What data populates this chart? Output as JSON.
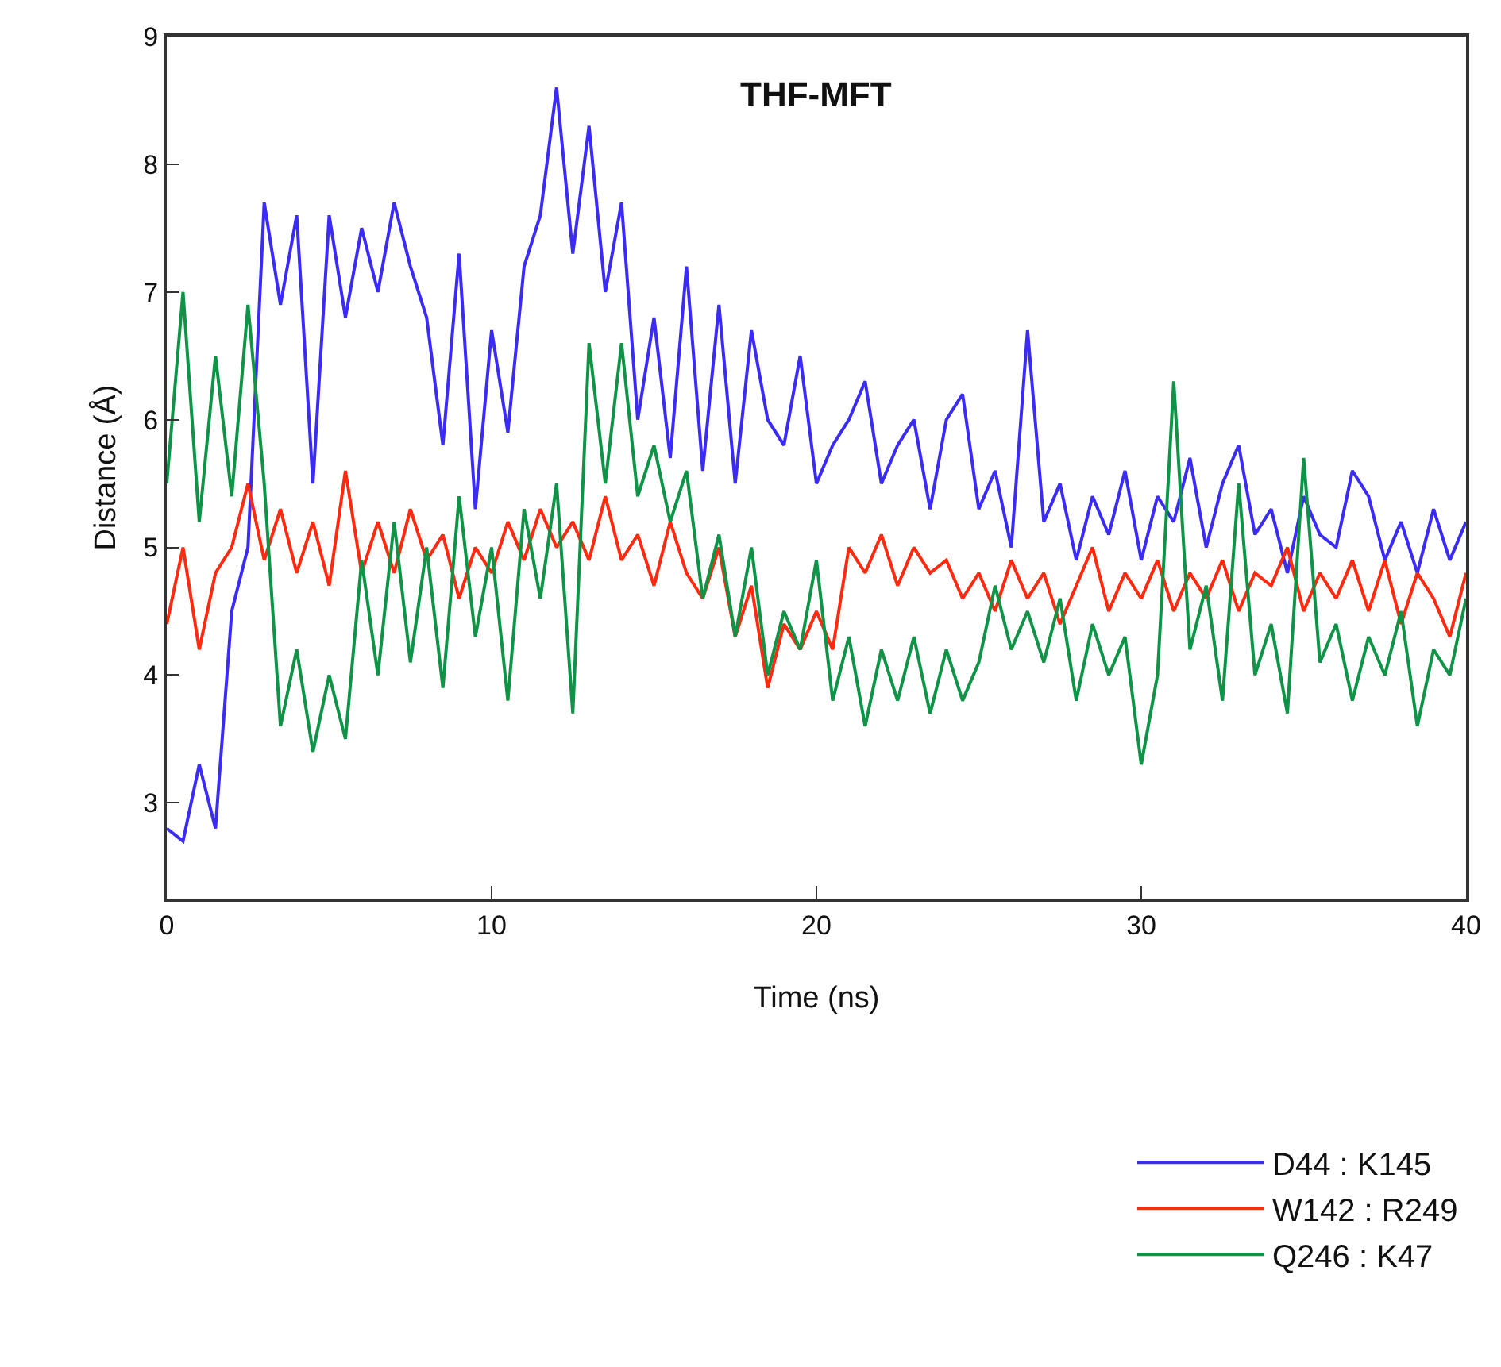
{
  "chart_data": {
    "type": "line",
    "title": "THF-MFT",
    "xlabel": "Time (ns)",
    "ylabel": "Distance (Å)",
    "x": [
      0,
      0.5,
      1,
      1.5,
      2,
      2.5,
      3,
      3.5,
      4,
      4.5,
      5,
      5.5,
      6,
      6.5,
      7,
      7.5,
      8,
      8.5,
      9,
      9.5,
      10,
      10.5,
      11,
      11.5,
      12,
      12.5,
      13,
      13.5,
      14,
      14.5,
      15,
      15.5,
      16,
      16.5,
      17,
      17.5,
      18,
      18.5,
      19,
      19.5,
      20,
      20.5,
      21,
      21.5,
      22,
      22.5,
      23,
      23.5,
      24,
      24.5,
      25,
      25.5,
      26,
      26.5,
      27,
      27.5,
      28,
      28.5,
      29,
      29.5,
      30,
      30.5,
      31,
      31.5,
      32,
      32.5,
      33,
      33.5,
      34,
      34.5,
      35,
      35.5,
      36,
      36.5,
      37,
      37.5,
      38,
      38.5,
      39,
      39.5,
      40
    ],
    "series": [
      {
        "name": "D44 : K145",
        "color": "#3a2cf5",
        "values": [
          2.8,
          2.7,
          3.3,
          2.8,
          4.5,
          5.0,
          7.7,
          6.9,
          7.6,
          5.5,
          7.6,
          6.8,
          7.5,
          7.0,
          7.7,
          7.2,
          6.8,
          5.8,
          7.3,
          5.3,
          6.7,
          5.9,
          7.2,
          7.6,
          8.6,
          7.3,
          8.3,
          7.0,
          7.7,
          6.0,
          6.8,
          5.7,
          7.2,
          5.6,
          6.9,
          5.5,
          6.7,
          6.0,
          5.8,
          6.5,
          5.5,
          5.8,
          6.0,
          6.3,
          5.5,
          5.8,
          6.0,
          5.3,
          6.0,
          6.2,
          5.3,
          5.6,
          5.0,
          6.7,
          5.2,
          5.5,
          4.9,
          5.4,
          5.1,
          5.6,
          4.9,
          5.4,
          5.2,
          5.7,
          5.0,
          5.5,
          5.8,
          5.1,
          5.3,
          4.8,
          5.4,
          5.1,
          5.0,
          5.6,
          5.4,
          4.9,
          5.2,
          4.8,
          5.3,
          4.9,
          5.2
        ]
      },
      {
        "name": "W142 : R249",
        "color": "#ff2a10",
        "values": [
          4.4,
          5.0,
          4.2,
          4.8,
          5.0,
          5.5,
          4.9,
          5.3,
          4.8,
          5.2,
          4.7,
          5.6,
          4.8,
          5.2,
          4.8,
          5.3,
          4.9,
          5.1,
          4.6,
          5.0,
          4.8,
          5.2,
          4.9,
          5.3,
          5.0,
          5.2,
          4.9,
          5.4,
          4.9,
          5.1,
          4.7,
          5.2,
          4.8,
          4.6,
          5.0,
          4.3,
          4.7,
          3.9,
          4.4,
          4.2,
          4.5,
          4.2,
          5.0,
          4.8,
          5.1,
          4.7,
          5.0,
          4.8,
          4.9,
          4.6,
          4.8,
          4.5,
          4.9,
          4.6,
          4.8,
          4.4,
          4.7,
          5.0,
          4.5,
          4.8,
          4.6,
          4.9,
          4.5,
          4.8,
          4.6,
          4.9,
          4.5,
          4.8,
          4.7,
          5.0,
          4.5,
          4.8,
          4.6,
          4.9,
          4.5,
          4.9,
          4.4,
          4.8,
          4.6,
          4.3,
          4.8
        ]
      },
      {
        "name": "Q246 : K47",
        "color": "#0f9447",
        "values": [
          5.5,
          7.0,
          5.2,
          6.5,
          5.4,
          6.9,
          5.5,
          3.6,
          4.2,
          3.4,
          4.0,
          3.5,
          4.9,
          4.0,
          5.2,
          4.1,
          5.0,
          3.9,
          5.4,
          4.3,
          5.0,
          3.8,
          5.3,
          4.6,
          5.5,
          3.7,
          6.6,
          5.5,
          6.6,
          5.4,
          5.8,
          5.2,
          5.6,
          4.6,
          5.1,
          4.3,
          5.0,
          4.0,
          4.5,
          4.2,
          4.9,
          3.8,
          4.3,
          3.6,
          4.2,
          3.8,
          4.3,
          3.7,
          4.2,
          3.8,
          4.1,
          4.7,
          4.2,
          4.5,
          4.1,
          4.6,
          3.8,
          4.4,
          4.0,
          4.3,
          3.3,
          4.0,
          6.3,
          4.2,
          4.7,
          3.8,
          5.5,
          4.0,
          4.4,
          3.7,
          5.7,
          4.1,
          4.4,
          3.8,
          4.3,
          4.0,
          4.5,
          3.6,
          4.2,
          4.0,
          4.6
        ]
      }
    ],
    "xlim": [
      0,
      40
    ],
    "xticks": [
      0,
      10,
      20,
      30,
      40
    ],
    "ylim": [
      2.25,
      9
    ],
    "yticks": [
      3,
      4,
      5,
      6,
      7,
      8,
      9
    ],
    "legend": "bottom right",
    "marker": "none",
    "line_style": "solid"
  }
}
